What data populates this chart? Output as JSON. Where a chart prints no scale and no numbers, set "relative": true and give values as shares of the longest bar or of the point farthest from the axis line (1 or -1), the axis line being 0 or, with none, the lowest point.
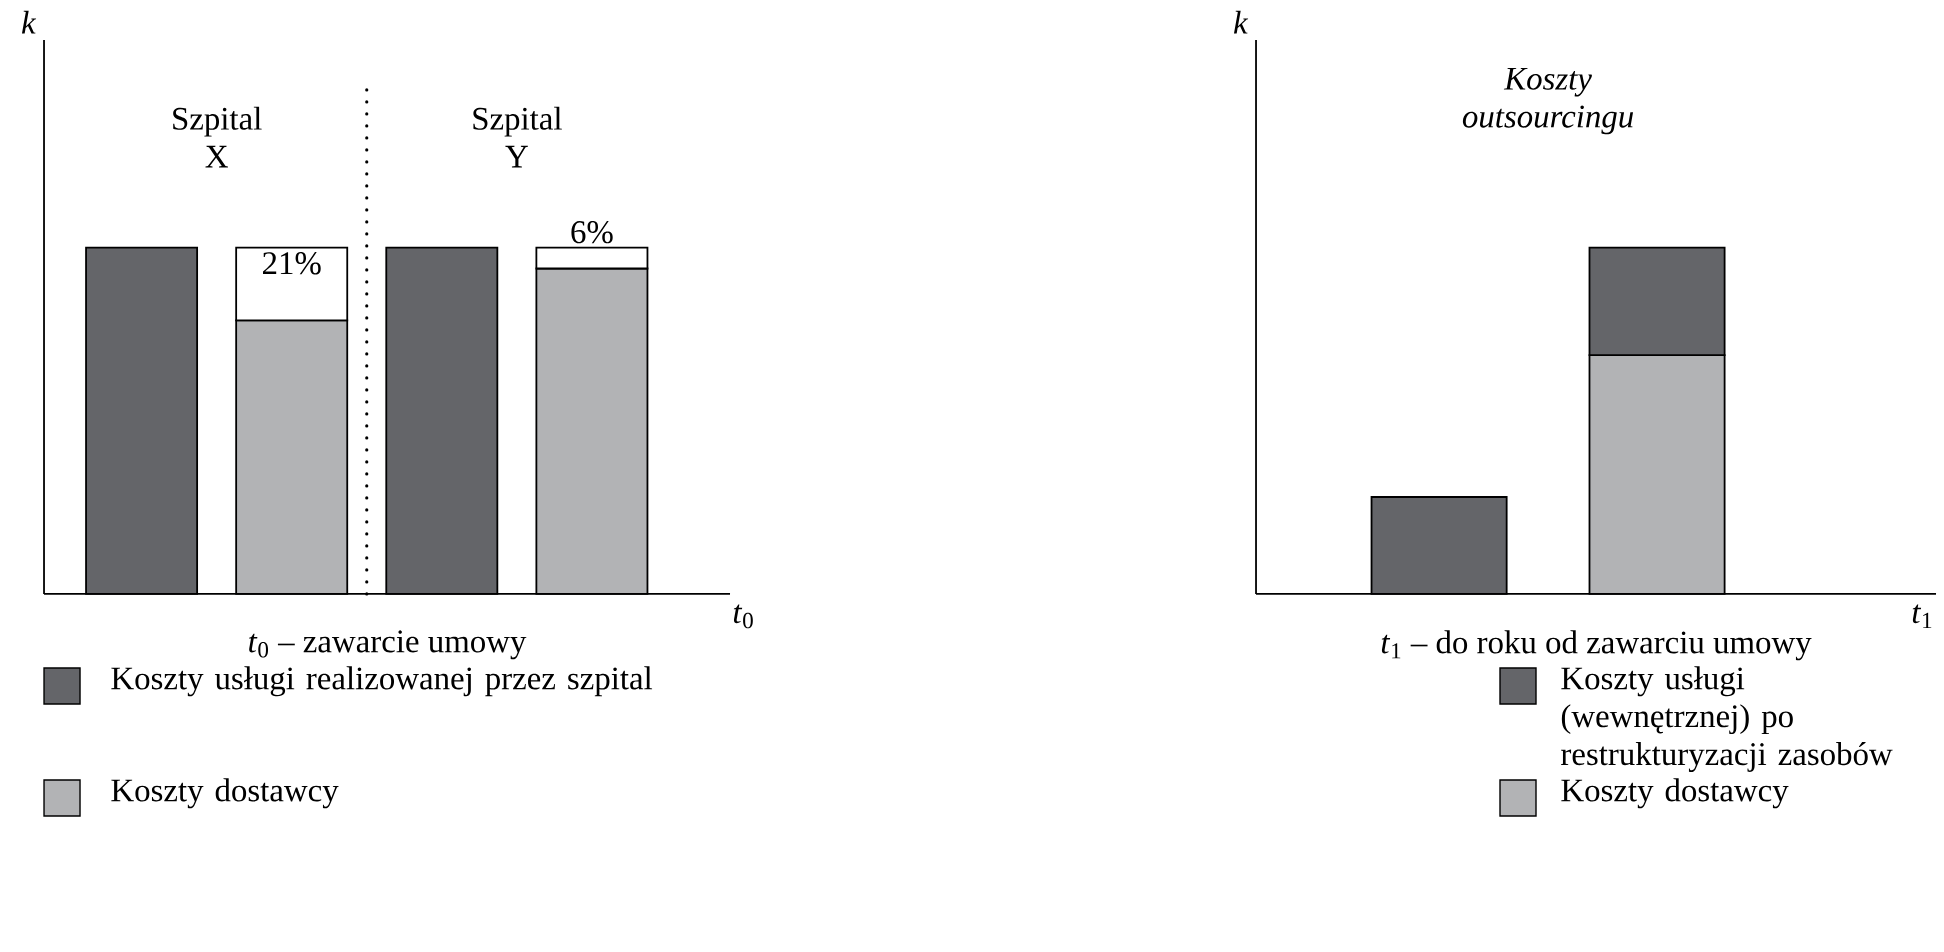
{
  "chart_data": [
    {
      "type": "bar",
      "stacked": true,
      "categories": [
        null,
        null,
        null,
        null
      ],
      "xlabel": "*t*$_{0}$",
      "ylabel": "k",
      "series": [
        {
          "name": "Koszty dostawcy",
          "color": "#b2b3b5",
          "values": [
            null,
            79,
            null,
            94
          ]
        },
        {
          "color": "#ffffff",
          "values": [
            null,
            21,
            null,
            6
          ],
          "value_labels": [
            null,
            "21%",
            null,
            "6%"
          ]
        },
        {
          "name": "Koszty usługi realizowanej przez szpital",
          "color": "#646569",
          "values": [
            100,
            null,
            100,
            null
          ]
        }
      ],
      "annotations": [
        "Szpital X",
        "Szpital Y",
        "*t*$_{0}$ – zawarcie umowy"
      ],
      "legend": "bottom"
    },
    {
      "type": "bar",
      "stacked": true,
      "relative": true,
      "categories": [
        null,
        null
      ],
      "title": "Koszty outsourcingu",
      "xlabel": "*t*$_{1}$",
      "ylabel": "k",
      "series": [
        {
          "name": "Koszty dostawcy",
          "color": "#b2b3b5",
          "values": [
            null,
            0.69
          ]
        },
        {
          "name": "Koszty usługi (wewnętrznej) po restrukturyzacji zasobów",
          "color": "#646569",
          "values": [
            0.28,
            0.31
          ]
        }
      ],
      "annotations": [
        "*t*$_{1}$ – do roku od zawarciu umowy"
      ],
      "legend": "bottom"
    }
  ]
}
